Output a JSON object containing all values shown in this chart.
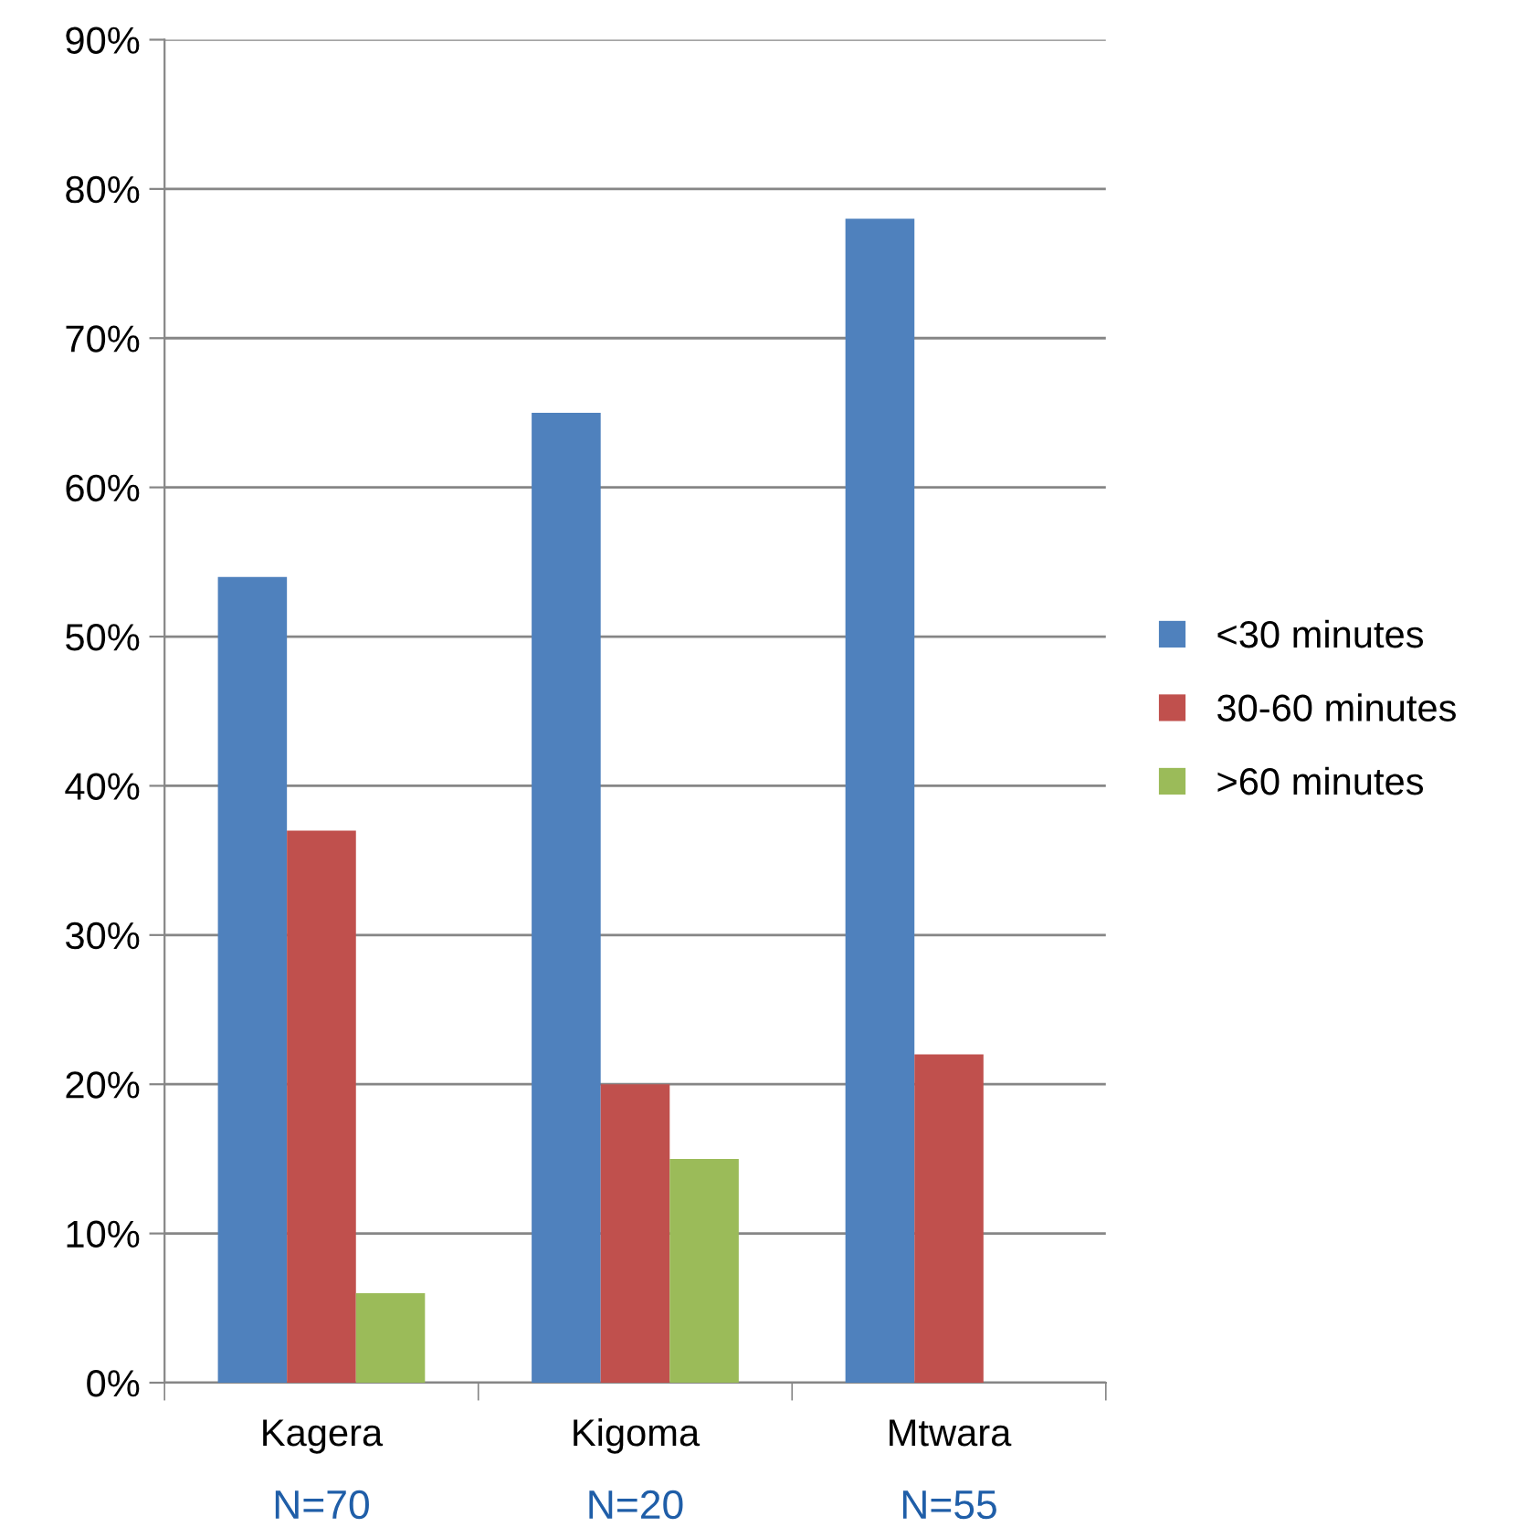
{
  "chart_data": {
    "type": "bar",
    "categories": [
      "Kagera",
      "Kigoma",
      "Mtwara"
    ],
    "series": [
      {
        "name": "<30 minutes",
        "color": "#4f81bd",
        "values": [
          54,
          65,
          78
        ]
      },
      {
        "name": "30-60 minutes",
        "color": "#c0504d",
        "values": [
          37,
          20,
          22
        ]
      },
      {
        "name": ">60 minutes",
        "color": "#9bbb59",
        "values": [
          6,
          15,
          0
        ]
      }
    ],
    "ylim": [
      0,
      90
    ],
    "yticks": [
      {
        "value": 0,
        "label": "0%"
      },
      {
        "value": 10,
        "label": "10%"
      },
      {
        "value": 20,
        "label": "20%"
      },
      {
        "value": 30,
        "label": "30%"
      },
      {
        "value": 40,
        "label": "40%"
      },
      {
        "value": 50,
        "label": "50%"
      },
      {
        "value": 60,
        "label": "60%"
      },
      {
        "value": 70,
        "label": "70%"
      },
      {
        "value": 80,
        "label": "80%"
      },
      {
        "value": 90,
        "label": "90%"
      }
    ],
    "grid": "y",
    "legend": "right",
    "annotations": [
      "N=70",
      "N=20",
      "N=55"
    ]
  }
}
